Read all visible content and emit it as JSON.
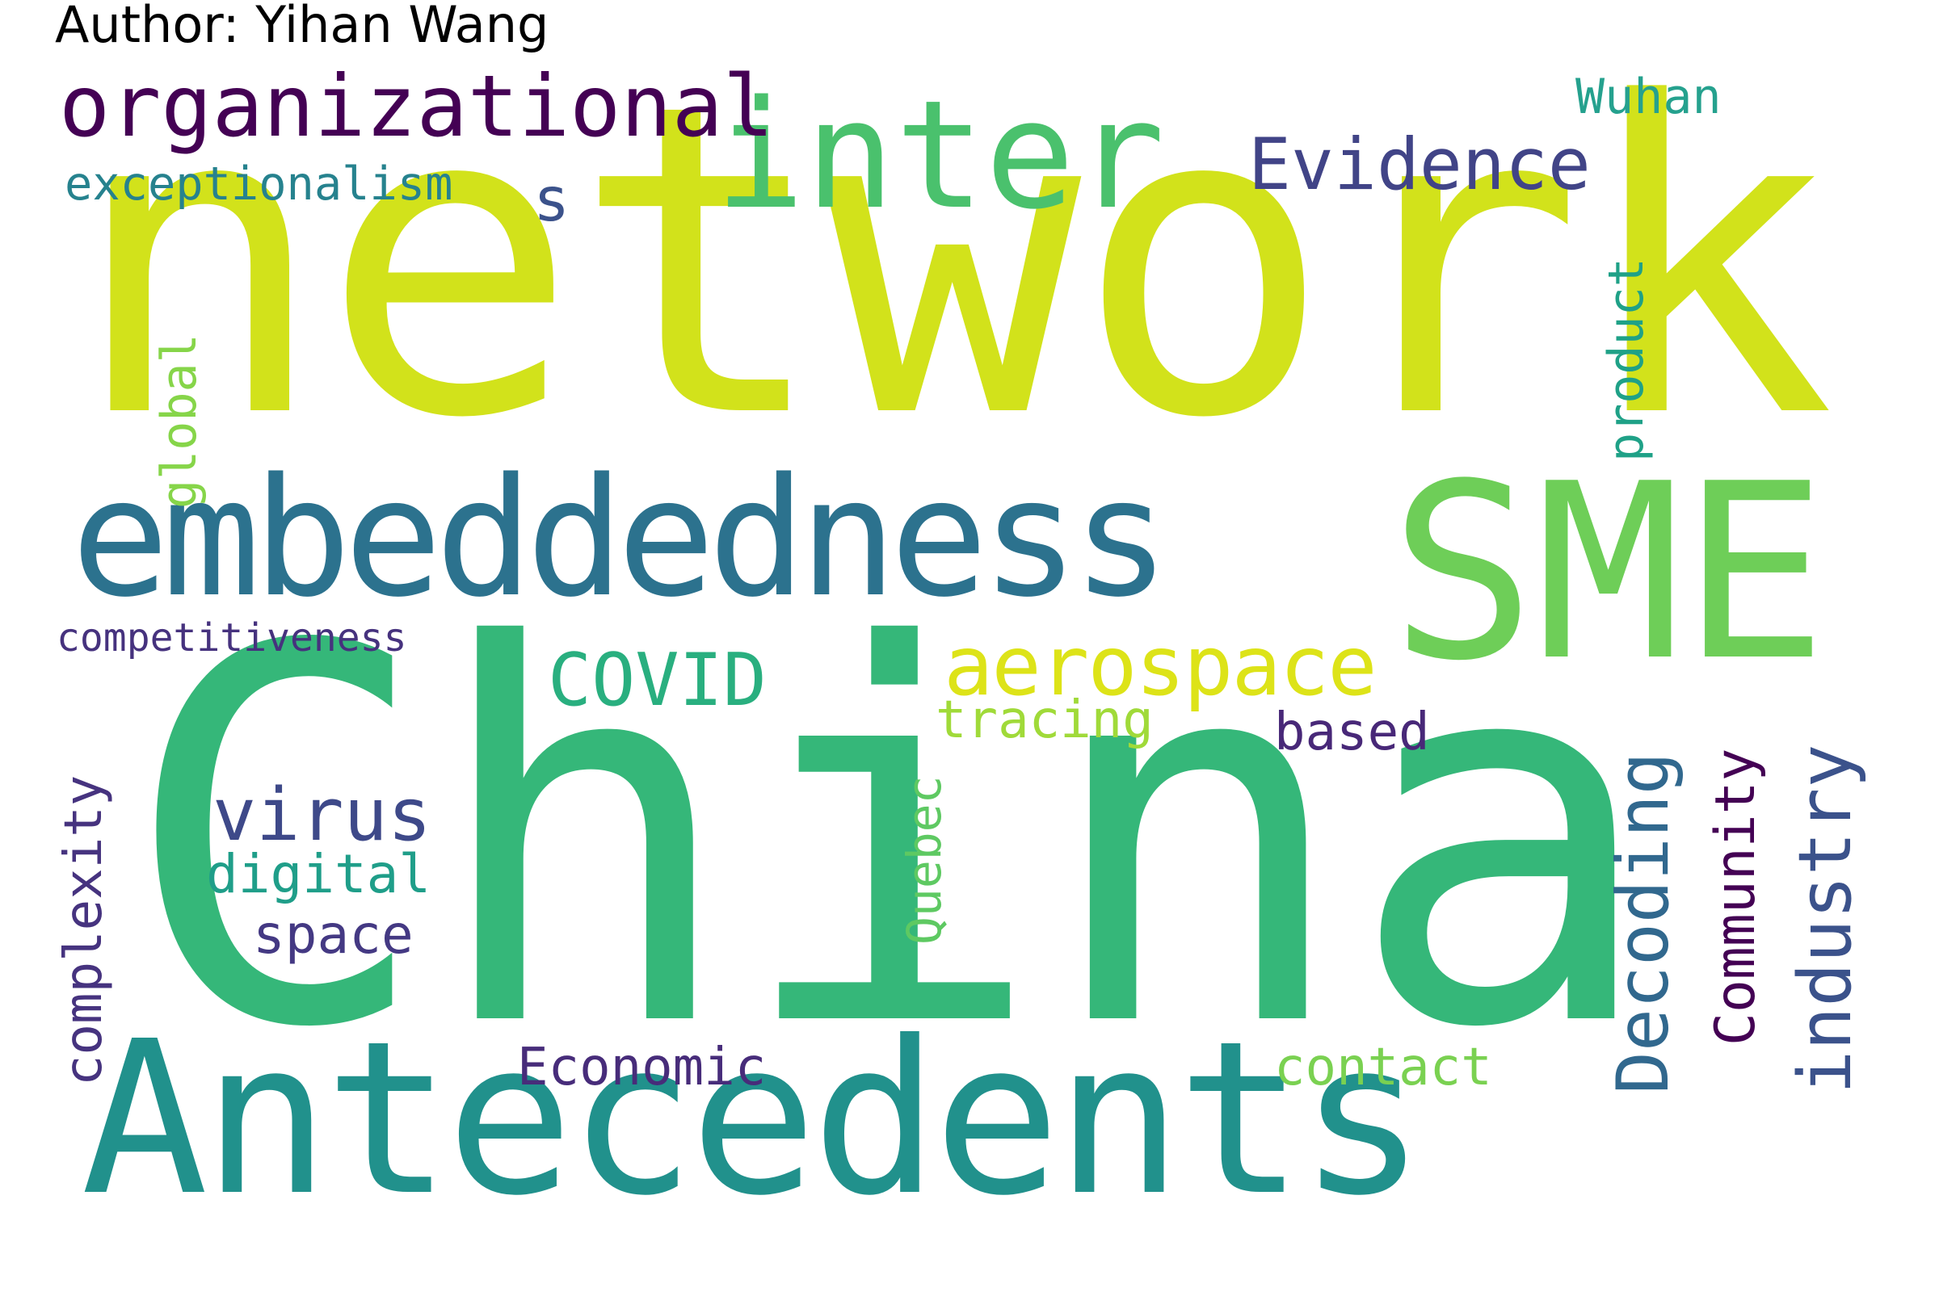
{
  "author_line": "Author: Yihan Wang",
  "words": {
    "network": {
      "text": "network",
      "color": "#d2e21b"
    },
    "China": {
      "text": "China",
      "color": "#35b779"
    },
    "Antecedents": {
      "text": "Antecedents",
      "color": "#21918c"
    },
    "embeddedness": {
      "text": "embeddedness",
      "color": "#2c728e"
    },
    "SME": {
      "text": "SME",
      "color": "#6ece58"
    },
    "inter": {
      "text": "inter",
      "color": "#4ac16d"
    },
    "organizational": {
      "text": "organizational",
      "color": "#440154"
    },
    "Evidence": {
      "text": "Evidence",
      "color": "#414487"
    },
    "Wuhan": {
      "text": "Wuhan",
      "color": "#25a18e"
    },
    "exceptionalism": {
      "text": "exceptionalism",
      "color": "#26828e"
    },
    "s": {
      "text": "s",
      "color": "#3b528b"
    },
    "aerospace": {
      "text": "aerospace",
      "color": "#dde318"
    },
    "COVID": {
      "text": "COVID",
      "color": "#29af7f"
    },
    "tracing": {
      "text": "tracing",
      "color": "#a0da39"
    },
    "based": {
      "text": "based",
      "color": "#482878"
    },
    "virus": {
      "text": "virus",
      "color": "#3e4989"
    },
    "digital": {
      "text": "digital",
      "color": "#1f9e89"
    },
    "space": {
      "text": "space",
      "color": "#443983"
    },
    "Economic": {
      "text": "Economic",
      "color": "#472c7a"
    },
    "contact": {
      "text": "contact",
      "color": "#7ad151"
    },
    "competitiveness": {
      "text": "competitiveness",
      "color": "#46327e"
    },
    "complexity": {
      "text": "complexity",
      "color": "#46337f"
    },
    "global": {
      "text": "global",
      "color": "#86d549"
    },
    "product": {
      "text": "product",
      "color": "#1fa187"
    },
    "Quebec": {
      "text": "Quebec",
      "color": "#5ec962"
    },
    "Decoding": {
      "text": "Decoding",
      "color": "#31688e"
    },
    "Community": {
      "text": "Community",
      "color": "#440154"
    },
    "industry": {
      "text": "industry",
      "color": "#3b528b"
    }
  }
}
